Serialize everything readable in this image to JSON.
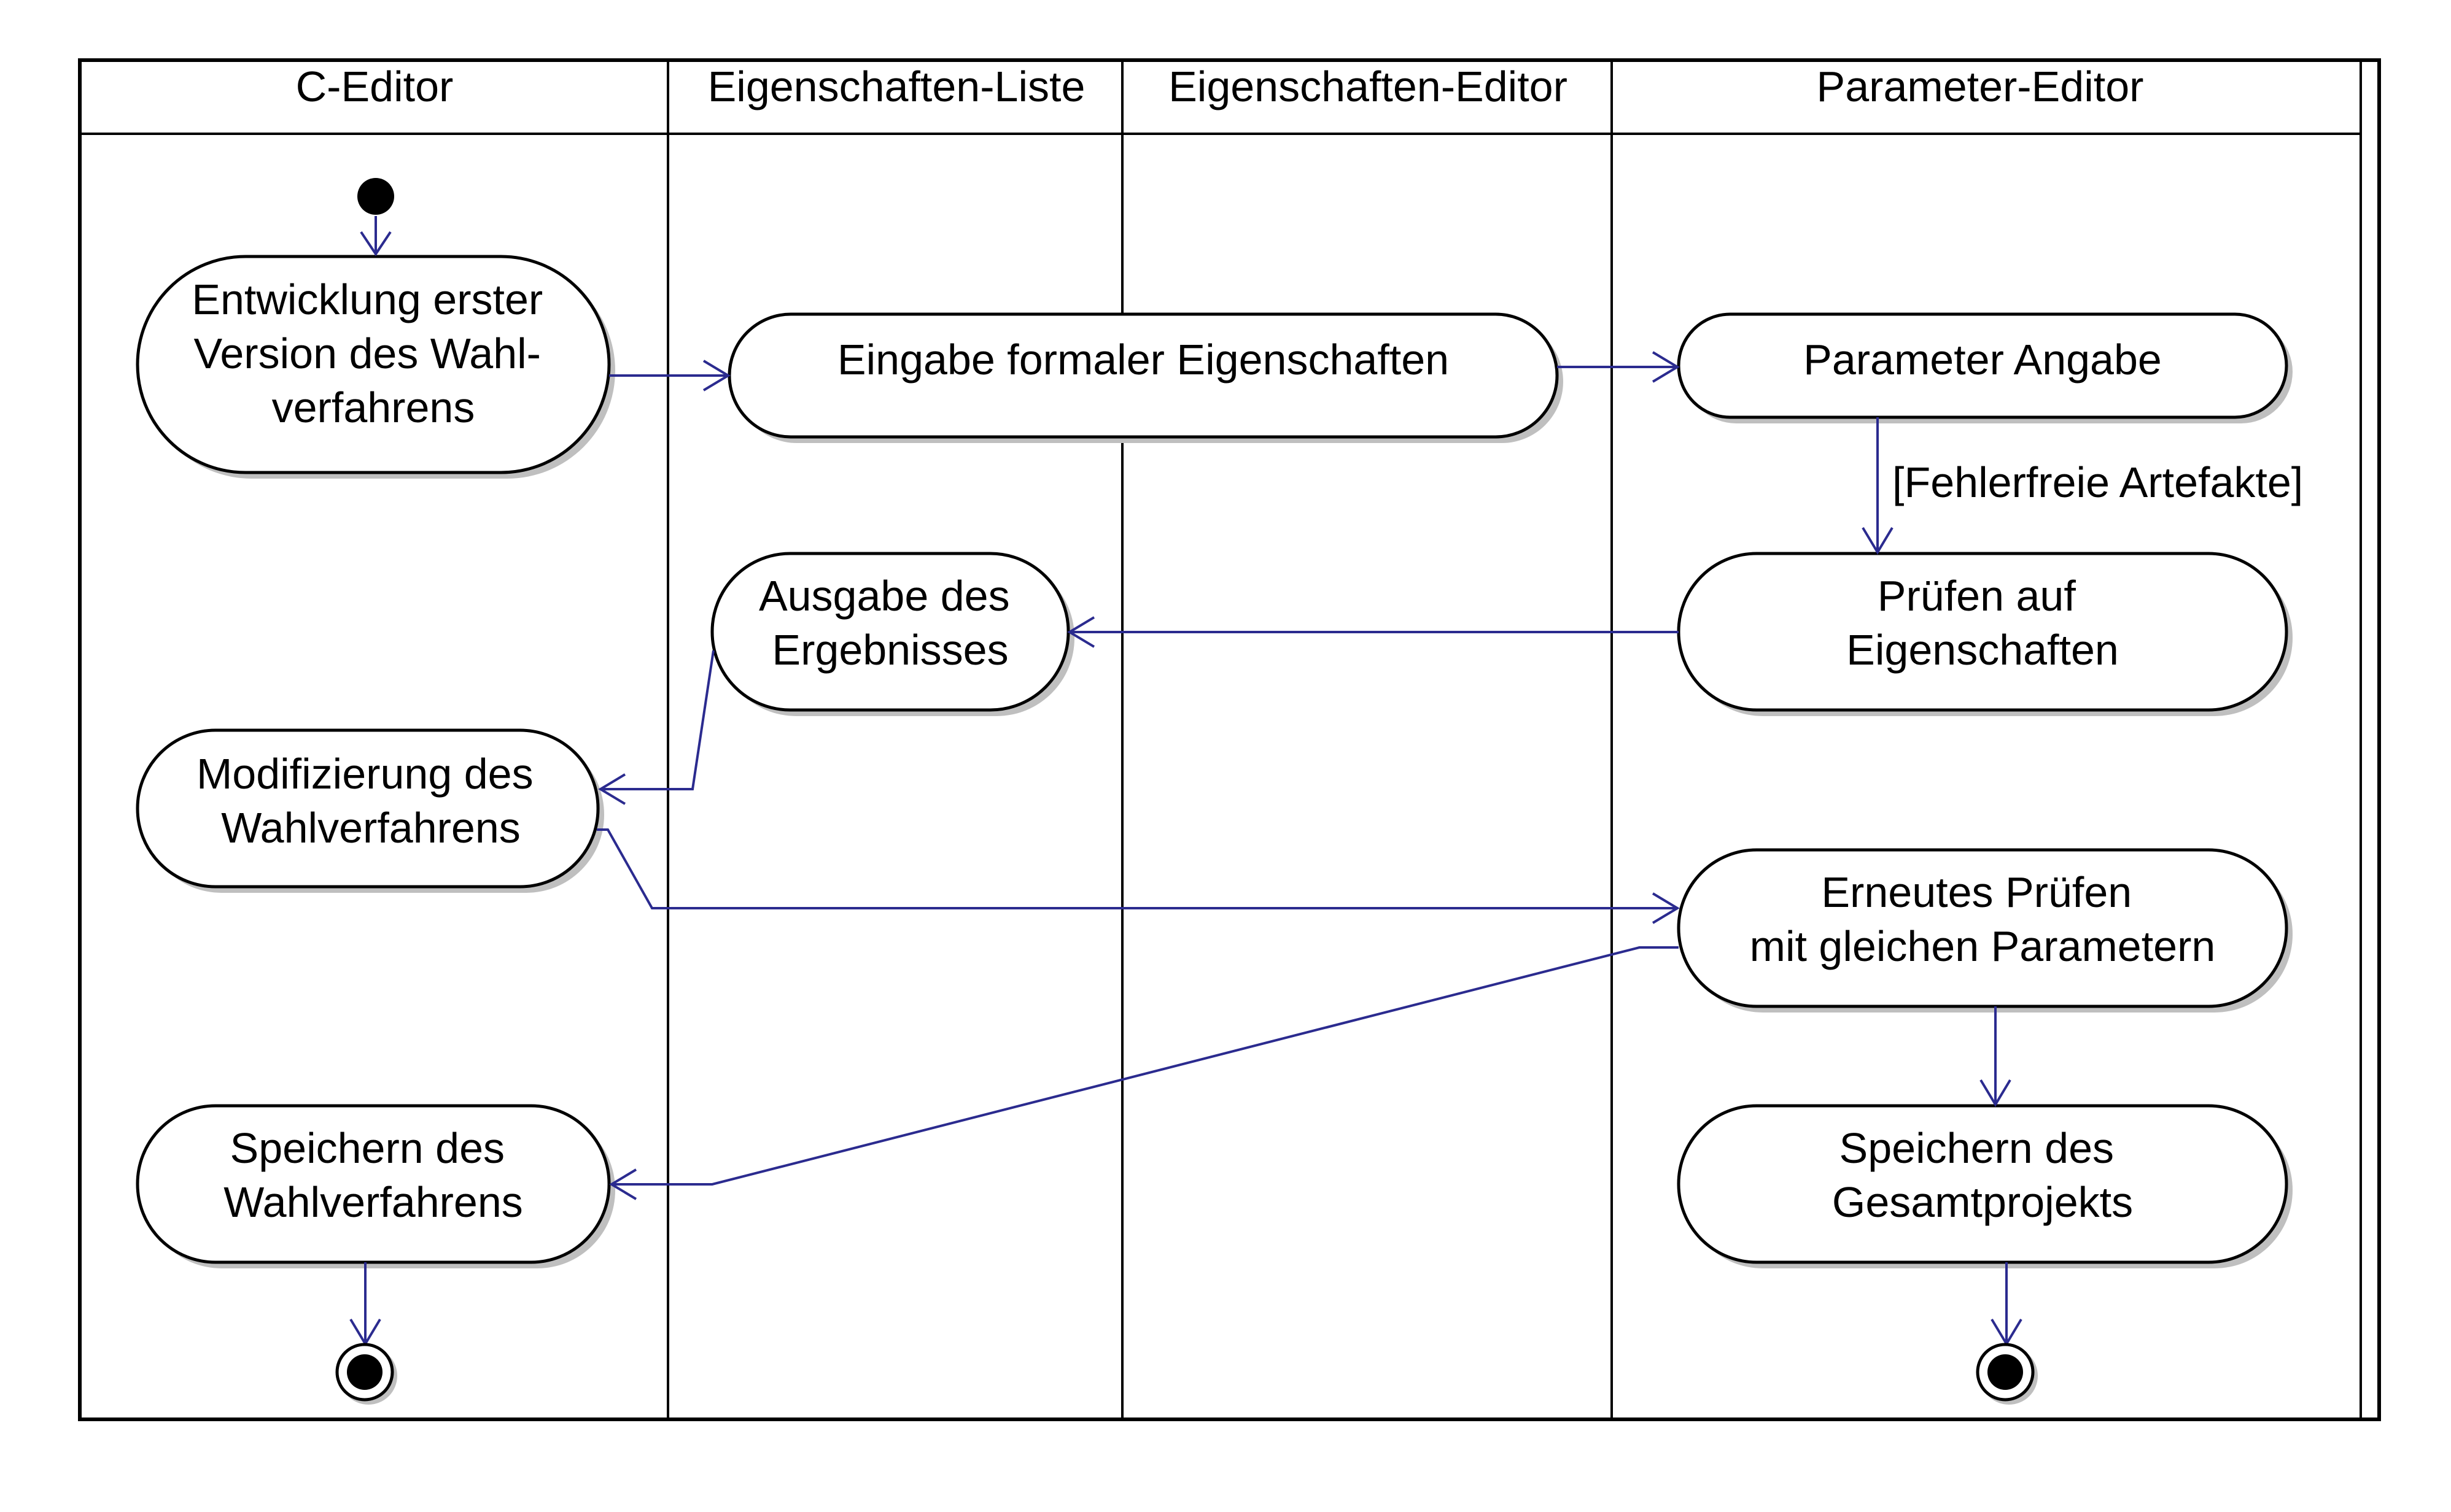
{
  "colors": {
    "flow": "#2b2b8f",
    "line": "#000000",
    "shadow": "#bfbfbf"
  },
  "lanes": [
    {
      "id": "c-editor",
      "title": "C-Editor"
    },
    {
      "id": "eigenschaften-liste",
      "title": "Eigenschaften-Liste"
    },
    {
      "id": "eigenschaften-editor",
      "title": "Eigenschaften-Editor"
    },
    {
      "id": "parameter-editor",
      "title": "Parameter-Editor"
    }
  ],
  "activities": [
    {
      "id": "entwicklung",
      "lines": [
        "Entwicklung erster",
        "Version des Wahl-",
        "verfahrens"
      ]
    },
    {
      "id": "eingabe",
      "lines": [
        "Eingabe formaler Eigenschaften"
      ]
    },
    {
      "id": "parameter-angabe",
      "lines": [
        "Parameter Angabe"
      ]
    },
    {
      "id": "pruefen",
      "lines": [
        "Prüfen auf",
        "Eigenschaften"
      ]
    },
    {
      "id": "ausgabe",
      "lines": [
        "Ausgabe des",
        "Ergebnisses"
      ]
    },
    {
      "id": "modifizierung",
      "lines": [
        "Modifizierung des",
        "Wahlverfahrens"
      ]
    },
    {
      "id": "erneutes-pruefen",
      "lines": [
        "Erneutes Prüfen",
        "mit gleichen Parametern"
      ]
    },
    {
      "id": "speichern-wahl",
      "lines": [
        "Speichern des",
        "Wahlverfahrens"
      ]
    },
    {
      "id": "speichern-gesamt",
      "lines": [
        "Speichern des",
        "Gesamtprojekts"
      ]
    }
  ],
  "guards": [
    {
      "id": "fehlerfrei",
      "text": "[Fehlerfreie Artefakte]"
    }
  ],
  "flows": [
    {
      "from": "start",
      "to": "entwicklung"
    },
    {
      "from": "entwicklung",
      "to": "eingabe"
    },
    {
      "from": "eingabe",
      "to": "parameter-angabe"
    },
    {
      "from": "parameter-angabe",
      "to": "pruefen",
      "guard": "fehlerfrei"
    },
    {
      "from": "pruefen",
      "to": "ausgabe"
    },
    {
      "from": "ausgabe",
      "to": "modifizierung"
    },
    {
      "from": "modifizierung",
      "to": "erneutes-pruefen"
    },
    {
      "from": "erneutes-pruefen",
      "to": "speichern-wahl"
    },
    {
      "from": "erneutes-pruefen",
      "to": "speichern-gesamt"
    },
    {
      "from": "speichern-wahl",
      "to": "end-left"
    },
    {
      "from": "speichern-gesamt",
      "to": "end-right"
    }
  ]
}
